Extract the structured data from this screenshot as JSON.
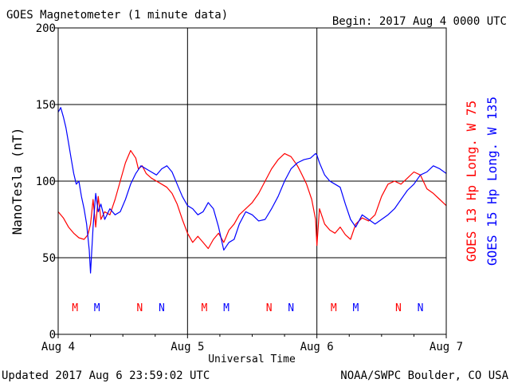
{
  "chart_data": {
    "type": "line",
    "title": "GOES Magnetometer (1 minute data)",
    "begin_label": "Begin:  2017 Aug 4 0000 UTC",
    "ylabel": "NanoTesla (nT)",
    "xlabel": "Universal Time",
    "ylim": [
      0,
      200
    ],
    "yticks": [
      "0",
      "50",
      "100",
      "150",
      "200"
    ],
    "xlim": [
      0,
      3
    ],
    "xticks": [
      {
        "x": 0,
        "label": "Aug 4"
      },
      {
        "x": 1,
        "label": "Aug 5"
      },
      {
        "x": 2,
        "label": "Aug 6"
      },
      {
        "x": 3,
        "label": "Aug 7"
      }
    ],
    "grid": true,
    "legend_position": "right-vertical",
    "series": [
      {
        "name": "GOES 13 Hp  Long. W 75",
        "color": "#ff0000",
        "x": [
          0.0,
          0.04,
          0.08,
          0.12,
          0.16,
          0.2,
          0.23,
          0.25,
          0.27,
          0.29,
          0.31,
          0.33,
          0.36,
          0.4,
          0.44,
          0.48,
          0.52,
          0.56,
          0.6,
          0.62,
          0.65,
          0.68,
          0.72,
          0.76,
          0.8,
          0.84,
          0.88,
          0.92,
          0.96,
          1.0,
          1.04,
          1.08,
          1.12,
          1.16,
          1.2,
          1.24,
          1.28,
          1.32,
          1.36,
          1.4,
          1.45,
          1.5,
          1.55,
          1.6,
          1.65,
          1.7,
          1.75,
          1.8,
          1.85,
          1.88,
          1.92,
          1.96,
          1.99,
          2.0,
          2.02,
          2.06,
          2.1,
          2.14,
          2.18,
          2.22,
          2.26,
          2.3,
          2.35,
          2.4,
          2.45,
          2.5,
          2.55,
          2.6,
          2.65,
          2.7,
          2.75,
          2.8,
          2.85,
          2.9,
          2.95,
          3.0
        ],
        "values": [
          80,
          76,
          70,
          66,
          63,
          62,
          65,
          72,
          88,
          70,
          90,
          75,
          80,
          78,
          88,
          100,
          112,
          120,
          115,
          108,
          110,
          105,
          102,
          100,
          98,
          96,
          92,
          85,
          75,
          66,
          60,
          64,
          60,
          56,
          62,
          66,
          60,
          68,
          72,
          78,
          82,
          86,
          92,
          100,
          108,
          114,
          118,
          116,
          110,
          105,
          98,
          88,
          75,
          58,
          82,
          72,
          68,
          66,
          70,
          65,
          62,
          72,
          76,
          74,
          78,
          90,
          98,
          100,
          98,
          102,
          106,
          104,
          95,
          92,
          88,
          84
        ]
      },
      {
        "name": "GOES 15 Hp  Long. W 135",
        "color": "#0000ff",
        "x": [
          0.0,
          0.02,
          0.04,
          0.06,
          0.08,
          0.1,
          0.12,
          0.14,
          0.16,
          0.18,
          0.2,
          0.22,
          0.24,
          0.25,
          0.27,
          0.29,
          0.31,
          0.33,
          0.36,
          0.4,
          0.44,
          0.48,
          0.52,
          0.56,
          0.6,
          0.64,
          0.68,
          0.72,
          0.76,
          0.8,
          0.84,
          0.88,
          0.92,
          0.96,
          1.0,
          1.04,
          1.08,
          1.12,
          1.16,
          1.2,
          1.24,
          1.28,
          1.32,
          1.36,
          1.4,
          1.45,
          1.5,
          1.55,
          1.6,
          1.65,
          1.7,
          1.75,
          1.8,
          1.85,
          1.9,
          1.95,
          1.99,
          2.0,
          2.02,
          2.06,
          2.1,
          2.14,
          2.18,
          2.22,
          2.26,
          2.3,
          2.35,
          2.4,
          2.45,
          2.5,
          2.55,
          2.6,
          2.65,
          2.7,
          2.75,
          2.8,
          2.85,
          2.9,
          2.95,
          3.0
        ],
        "values": [
          145,
          148,
          142,
          135,
          125,
          115,
          105,
          98,
          100,
          90,
          82,
          72,
          55,
          40,
          70,
          92,
          80,
          85,
          75,
          82,
          78,
          80,
          88,
          98,
          105,
          110,
          108,
          106,
          104,
          108,
          110,
          106,
          98,
          90,
          84,
          82,
          78,
          80,
          86,
          82,
          70,
          55,
          60,
          62,
          72,
          80,
          78,
          74,
          75,
          82,
          90,
          100,
          108,
          112,
          114,
          115,
          118,
          117,
          112,
          104,
          100,
          98,
          96,
          85,
          75,
          70,
          78,
          75,
          72,
          75,
          78,
          82,
          88,
          94,
          98,
          104,
          106,
          110,
          108,
          105
        ]
      }
    ],
    "markers": [
      {
        "x": 0.13,
        "label": "M",
        "color": "#ff0000"
      },
      {
        "x": 0.3,
        "label": "M",
        "color": "#0000ff"
      },
      {
        "x": 0.63,
        "label": "N",
        "color": "#ff0000"
      },
      {
        "x": 0.8,
        "label": "N",
        "color": "#0000ff"
      },
      {
        "x": 1.13,
        "label": "M",
        "color": "#ff0000"
      },
      {
        "x": 1.3,
        "label": "M",
        "color": "#0000ff"
      },
      {
        "x": 1.63,
        "label": "N",
        "color": "#ff0000"
      },
      {
        "x": 1.8,
        "label": "N",
        "color": "#0000ff"
      },
      {
        "x": 2.13,
        "label": "M",
        "color": "#ff0000"
      },
      {
        "x": 2.3,
        "label": "M",
        "color": "#0000ff"
      },
      {
        "x": 2.63,
        "label": "N",
        "color": "#ff0000"
      },
      {
        "x": 2.8,
        "label": "N",
        "color": "#0000ff"
      }
    ]
  },
  "footer": {
    "updated": "Updated 2017 Aug  6 23:59:02 UTC",
    "source": "NOAA/SWPC Boulder, CO USA"
  }
}
